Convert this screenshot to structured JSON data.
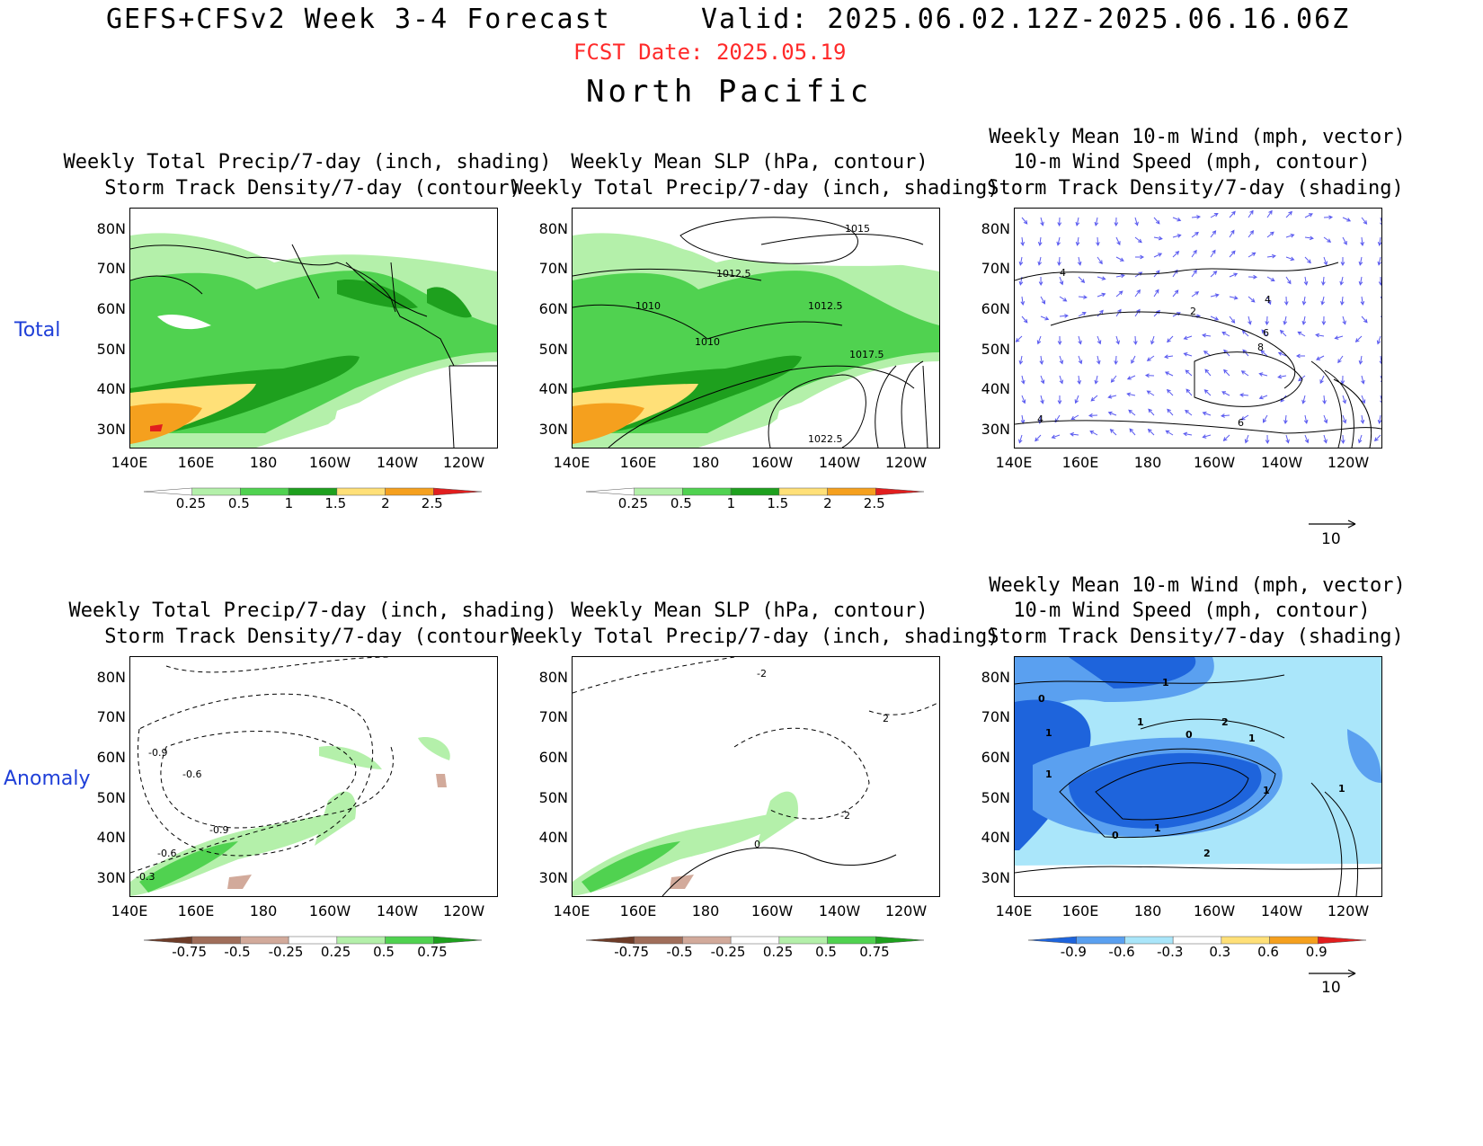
{
  "header": {
    "title_left": "GEFS+CFSv2 Week 3-4 Forecast",
    "title_right": "Valid: 2025.06.02.12Z-2025.06.16.06Z",
    "fcst_date": "FCST Date: 2025.05.19",
    "region": "North Pacific"
  },
  "rows": {
    "total": "Total",
    "anomaly": "Anomaly"
  },
  "panels": {
    "p1": {
      "line1": "Weekly Total Precip/7-day (inch, shading)",
      "line2": "Storm Track Density/7-day (contour)"
    },
    "p2": {
      "line1": "Weekly Mean SLP (hPa, contour)",
      "line2": "Weekly Total Precip/7-day (inch, shading)"
    },
    "p3": {
      "line1": "Weekly Mean 10-m Wind (mph, vector)",
      "line2": "10-m Wind Speed (mph, contour)",
      "line3": "Storm Track Density/7-day (shading)"
    },
    "p4": {
      "line1": "Weekly Total Precip/7-day (inch, shading)",
      "line2": "Storm Track Density/7-day (contour)"
    },
    "p5": {
      "line1": "Weekly Mean SLP (hPa, contour)",
      "line2": "Weekly Total Precip/7-day (inch, shading)"
    },
    "p6": {
      "line1": "Weekly Mean 10-m Wind (mph, vector)",
      "line2": "10-m Wind Speed (mph, contour)",
      "line3": "Storm Track Density/7-day (shading)"
    }
  },
  "axes": {
    "lat": [
      "80N",
      "70N",
      "60N",
      "50N",
      "40N",
      "30N"
    ],
    "lon": [
      "140E",
      "160E",
      "180",
      "160W",
      "140W",
      "120W"
    ]
  },
  "colorbars": {
    "total_precip": {
      "labels": [
        "0.25",
        "0.5",
        "1",
        "1.5",
        "2",
        "2.5"
      ],
      "colors": [
        "#ffffff",
        "#b4f0aa",
        "#50d250",
        "#1ea01e",
        "#ffe078",
        "#f5a01e",
        "#e11e1e"
      ]
    },
    "anom_precip": {
      "labels": [
        "-0.75",
        "-0.5",
        "-0.25",
        "0.25",
        "0.5",
        "0.75"
      ],
      "colors": [
        "#6e3c28",
        "#a06e5a",
        "#d2aa9b",
        "#ffffff",
        "#b4f0aa",
        "#50d250",
        "#1ea01e"
      ]
    },
    "anom_storm": {
      "labels": [
        "-0.9",
        "-0.6",
        "-0.3",
        "0.3",
        "0.6",
        "0.9"
      ],
      "colors": [
        "#1e64dc",
        "#5aa0f0",
        "#aae6fa",
        "#ffffff",
        "#ffe078",
        "#f5a01e",
        "#e11e1e"
      ]
    }
  },
  "slp_labels": {
    "a": "1015",
    "b": "1012.5",
    "c": "1010",
    "d": "1010",
    "e": "1012.5",
    "f": "1017.5",
    "g": "1022.5"
  },
  "wind_labels": {
    "a": "4",
    "b": "2",
    "c": "4",
    "d": "8",
    "e": "6",
    "f": "4",
    "g": "6"
  },
  "anom_labels": {
    "a": "-0.9",
    "b": "-0.6",
    "c": "-0.9",
    "d": "-0.6",
    "e": "-0.3",
    "f": "0",
    "g": "-2",
    "h": "2",
    "i": "-2",
    "j": "1",
    "k": "1",
    "l": "1",
    "m": "0",
    "n": "1",
    "o": "1",
    "p": "0",
    "q": "1",
    "r": "2",
    "s": "1",
    "t": "0",
    "u": "2",
    "v": "1"
  },
  "vector_ref": "10"
}
